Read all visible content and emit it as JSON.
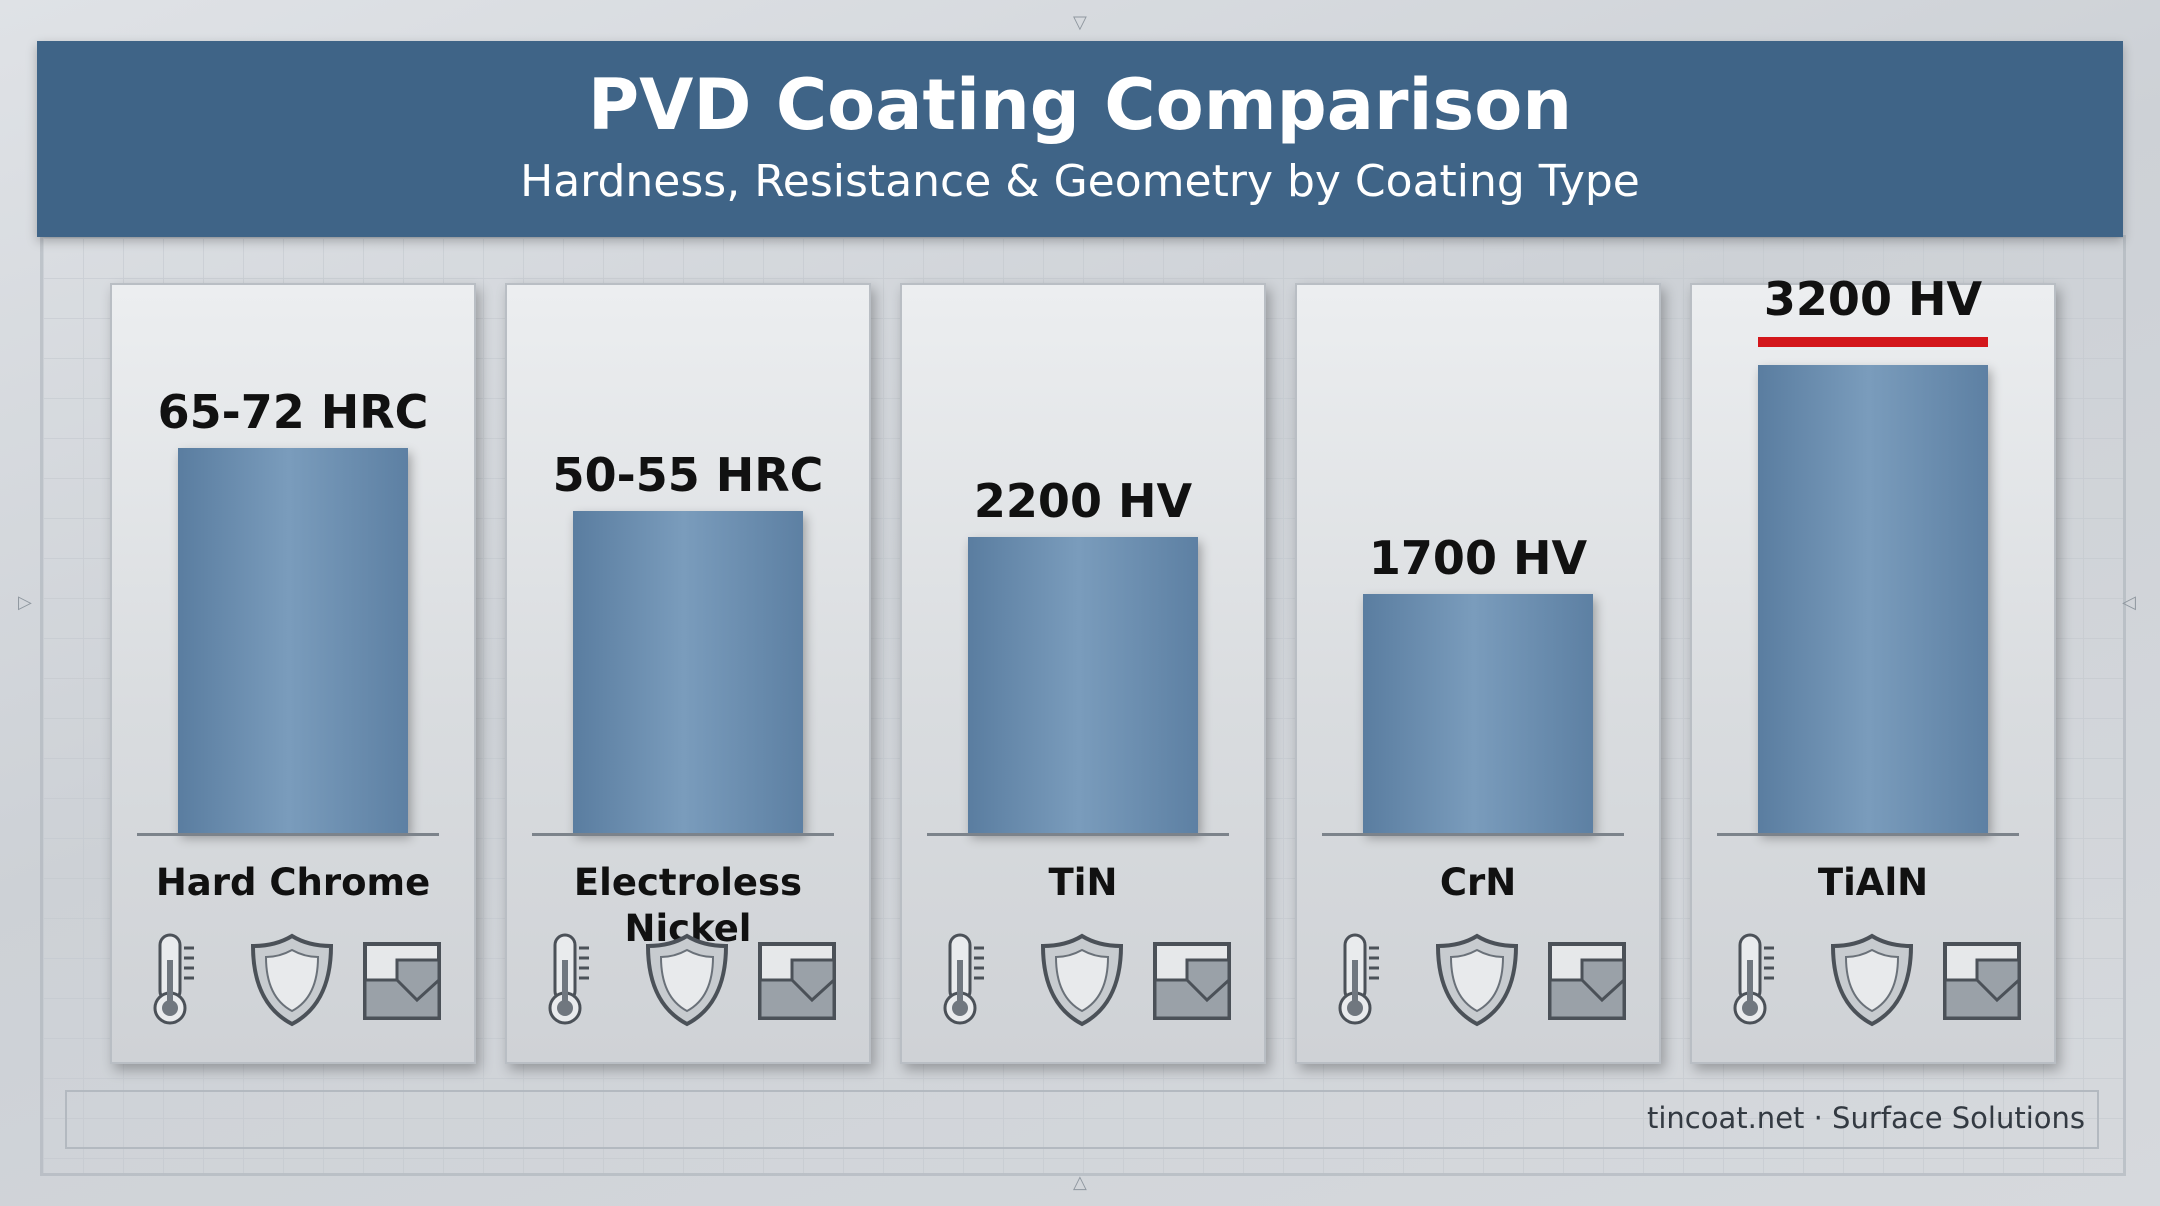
{
  "header": {
    "title": "PVD Coating Comparison",
    "subtitle": "Hardness, Resistance & Geometry by Coating Type"
  },
  "icons": [
    "thermometer-icon",
    "shield-icon",
    "geometry-icon"
  ],
  "colors": {
    "header_bg": "#3f6487",
    "bar": "#6a8db0",
    "highlight": "#d3161b"
  },
  "footer": "tincoat.net · Surface Solutions",
  "chart_data": {
    "type": "bar",
    "title": "PVD Coating Comparison",
    "subtitle": "Hardness, Resistance & Geometry by Coating Type",
    "categories": [
      "Hard Chrome",
      "Electroless Nickel",
      "TiN",
      "CrN",
      "TiAlN"
    ],
    "value_labels": [
      "65-72 HRC",
      "50-55 HRC",
      "2200 HV",
      "1700 HV",
      "3200 HV"
    ],
    "values": [
      0.74,
      0.62,
      0.57,
      0.46,
      0.9
    ],
    "highlighted": "TiAlN",
    "grid": false,
    "legend": "none"
  }
}
